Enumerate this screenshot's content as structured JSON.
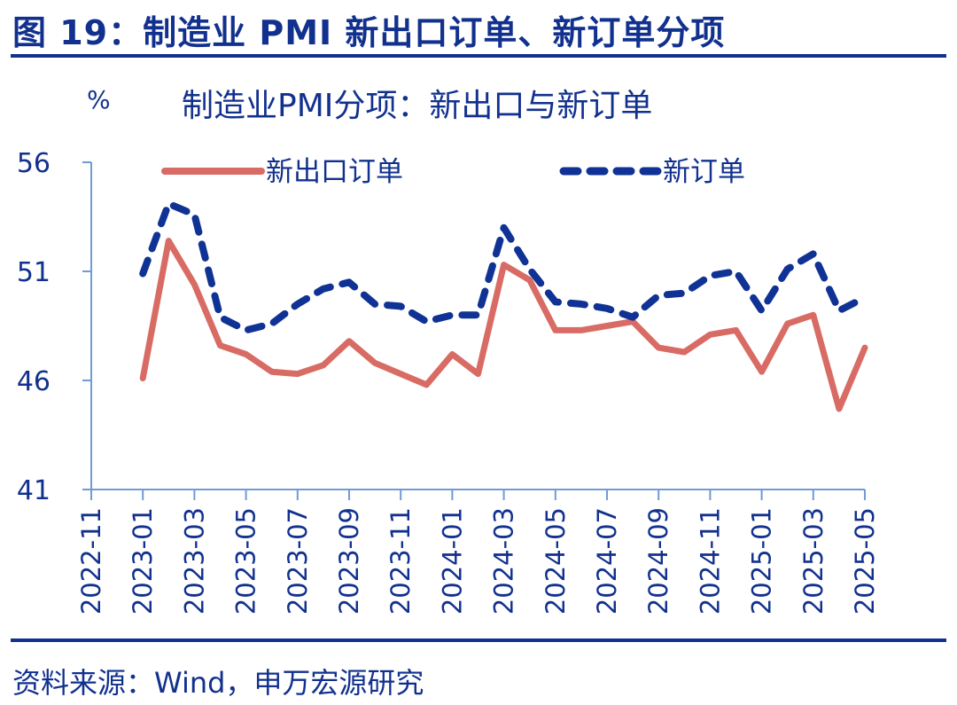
{
  "figure": {
    "title": "图 19：制造业 PMI 新出口订单、新订单分项",
    "source": "资料来源：Wind，申万宏源研究"
  },
  "colors": {
    "primary_text": "#12318e",
    "axis": "#6f9bd6",
    "new_export_orders": "#d96b65",
    "new_orders": "#0f3294"
  },
  "chart_data": {
    "type": "line",
    "title": "制造业PMI分项：新出口与新订单",
    "xlabel": "",
    "ylabel": "%",
    "ylim": [
      41,
      56
    ],
    "yticks": [
      41,
      46,
      51,
      56
    ],
    "grid": false,
    "legend_position": "top",
    "xtick_labels": [
      "2022-11",
      "2023-01",
      "2023-03",
      "2023-05",
      "2023-07",
      "2023-09",
      "2023-11",
      "2024-01",
      "2024-03",
      "2024-05",
      "2024-07",
      "2024-09",
      "2024-11",
      "2025-01",
      "2025-03",
      "2025-05"
    ],
    "x": [
      "2023-01",
      "2023-02",
      "2023-03",
      "2023-04",
      "2023-05",
      "2023-06",
      "2023-07",
      "2023-08",
      "2023-09",
      "2023-10",
      "2023-11",
      "2023-12",
      "2024-01",
      "2024-02",
      "2024-03",
      "2024-04",
      "2024-05",
      "2024-06",
      "2024-07",
      "2024-08",
      "2024-09",
      "2024-10",
      "2024-11",
      "2024-12",
      "2025-01",
      "2025-02",
      "2025-03",
      "2025-04",
      "2025-05"
    ],
    "series": [
      {
        "name": "新出口订单",
        "style": "solid",
        "color": "#d96b65",
        "values": [
          46.1,
          52.4,
          50.4,
          47.6,
          47.2,
          46.4,
          46.3,
          46.7,
          47.8,
          46.8,
          46.3,
          45.8,
          47.2,
          46.3,
          51.3,
          50.6,
          48.3,
          48.3,
          48.5,
          48.7,
          47.5,
          47.3,
          48.1,
          48.3,
          46.4,
          48.6,
          49.0,
          44.7,
          47.5
        ]
      },
      {
        "name": "新订单",
        "style": "dashed",
        "color": "#0f3294",
        "values": [
          50.9,
          54.1,
          53.6,
          48.9,
          48.3,
          48.6,
          49.5,
          50.2,
          50.5,
          49.5,
          49.4,
          48.7,
          49.0,
          49.0,
          53.0,
          51.1,
          49.6,
          49.5,
          49.3,
          48.9,
          49.9,
          50.0,
          50.8,
          51.0,
          49.2,
          51.1,
          51.8,
          49.2,
          49.8
        ]
      }
    ]
  }
}
